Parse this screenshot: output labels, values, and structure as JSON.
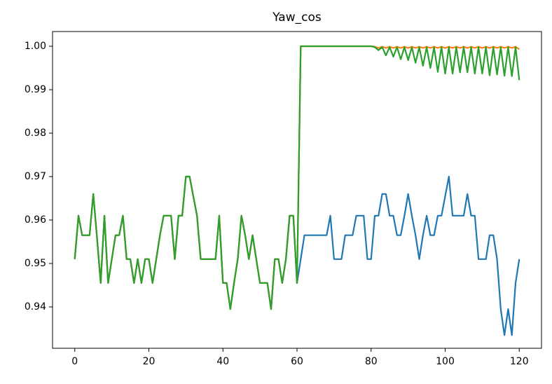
{
  "chart_data": {
    "type": "line",
    "title": "Yaw_cos",
    "x": [
      0,
      1,
      2,
      3,
      4,
      5,
      6,
      7,
      8,
      9,
      10,
      11,
      12,
      13,
      14,
      15,
      16,
      17,
      18,
      19,
      20,
      21,
      22,
      23,
      24,
      25,
      26,
      27,
      28,
      29,
      30,
      31,
      32,
      33,
      34,
      35,
      36,
      37,
      38,
      39,
      40,
      41,
      42,
      43,
      44,
      45,
      46,
      47,
      48,
      49,
      50,
      51,
      52,
      53,
      54,
      55,
      56,
      57,
      58,
      59,
      60,
      61,
      62,
      63,
      64,
      65,
      66,
      67,
      68,
      69,
      70,
      71,
      72,
      73,
      74,
      75,
      76,
      77,
      78,
      79,
      80,
      81,
      82,
      83,
      84,
      85,
      86,
      87,
      88,
      89,
      90,
      91,
      92,
      93,
      94,
      95,
      96,
      97,
      98,
      99,
      100,
      101,
      102,
      103,
      104,
      105,
      106,
      107,
      108,
      109,
      110,
      111,
      112,
      113,
      114,
      115,
      116,
      117,
      118,
      119,
      120
    ],
    "series": [
      {
        "color": "#1f77b4",
        "values": [
          0.951,
          0.961,
          0.9565,
          0.9565,
          0.9565,
          0.966,
          0.956,
          0.9455,
          0.961,
          0.9455,
          0.951,
          0.9565,
          0.9565,
          0.961,
          0.951,
          0.951,
          0.9455,
          0.951,
          0.9455,
          0.951,
          0.951,
          0.9455,
          0.951,
          0.9565,
          0.961,
          0.961,
          0.961,
          0.951,
          0.961,
          0.961,
          0.97,
          0.97,
          0.9655,
          0.961,
          0.951,
          0.951,
          0.951,
          0.951,
          0.951,
          0.961,
          0.9455,
          0.9455,
          0.9395,
          0.9455,
          0.951,
          0.961,
          0.9565,
          0.951,
          0.9565,
          0.951,
          0.9455,
          0.9455,
          0.9455,
          0.9395,
          0.951,
          0.951,
          0.9455,
          0.951,
          0.961,
          0.961,
          0.9455,
          0.951,
          0.9565,
          0.9565,
          0.9565,
          0.9565,
          0.9565,
          0.9565,
          0.9565,
          0.961,
          0.951,
          0.951,
          0.951,
          0.9565,
          0.9565,
          0.9565,
          0.961,
          0.961,
          0.961,
          0.951,
          0.951,
          0.961,
          0.961,
          0.966,
          0.966,
          0.961,
          0.961,
          0.9565,
          0.9565,
          0.961,
          0.966,
          0.961,
          0.9565,
          0.951,
          0.9565,
          0.961,
          0.9565,
          0.9565,
          0.961,
          0.961,
          0.9655,
          0.97,
          0.961,
          0.961,
          0.961,
          0.961,
          0.966,
          0.961,
          0.961,
          0.951,
          0.951,
          0.951,
          0.9565,
          0.9565,
          0.951,
          0.9395,
          0.9335,
          0.9395,
          0.9335,
          0.9455,
          0.951
        ]
      },
      {
        "color": "#ff7f0e",
        "values": [
          0.951,
          0.961,
          0.9565,
          0.9565,
          0.9565,
          0.966,
          0.956,
          0.9455,
          0.961,
          0.9455,
          0.951,
          0.9565,
          0.9565,
          0.961,
          0.951,
          0.951,
          0.9455,
          0.951,
          0.9455,
          0.951,
          0.951,
          0.9455,
          0.951,
          0.9565,
          0.961,
          0.961,
          0.961,
          0.951,
          0.961,
          0.961,
          0.97,
          0.97,
          0.9655,
          0.961,
          0.951,
          0.951,
          0.951,
          0.951,
          0.951,
          0.961,
          0.9455,
          0.9455,
          0.9395,
          0.9455,
          0.951,
          0.961,
          0.9565,
          0.951,
          0.9565,
          0.951,
          0.9455,
          0.9455,
          0.9455,
          0.9395,
          0.951,
          0.951,
          0.9455,
          0.951,
          0.961,
          0.961,
          0.9455,
          1,
          1,
          1,
          1,
          1,
          1,
          1,
          1,
          1,
          1,
          1,
          1,
          1,
          1,
          1,
          1,
          1,
          1,
          1,
          1,
          0.9999,
          0.9996,
          0.9999,
          0.9996,
          0.9999,
          0.9996,
          0.9999,
          0.9996,
          0.9999,
          0.9996,
          0.9999,
          0.9996,
          0.9999,
          0.9996,
          0.9999,
          0.9996,
          0.9999,
          0.9996,
          0.9999,
          0.9996,
          0.9999,
          0.9996,
          0.9999,
          0.9996,
          0.9999,
          0.9996,
          0.9999,
          0.9996,
          0.9999,
          0.9996,
          0.9999,
          0.9996,
          0.9999,
          0.9996,
          0.9999,
          0.9996,
          0.9999,
          0.9996,
          0.9999,
          0.9993
        ]
      },
      {
        "color": "#2ca02c",
        "values": [
          0.951,
          0.961,
          0.9565,
          0.9565,
          0.9565,
          0.966,
          0.956,
          0.9455,
          0.961,
          0.9455,
          0.951,
          0.9565,
          0.9565,
          0.961,
          0.951,
          0.951,
          0.9455,
          0.951,
          0.9455,
          0.951,
          0.951,
          0.9455,
          0.951,
          0.9565,
          0.961,
          0.961,
          0.961,
          0.951,
          0.961,
          0.961,
          0.97,
          0.97,
          0.9655,
          0.961,
          0.951,
          0.951,
          0.951,
          0.951,
          0.951,
          0.961,
          0.9455,
          0.9455,
          0.9395,
          0.9455,
          0.951,
          0.961,
          0.9565,
          0.951,
          0.9565,
          0.951,
          0.9455,
          0.9455,
          0.9455,
          0.9395,
          0.951,
          0.951,
          0.9455,
          0.951,
          0.961,
          0.961,
          0.9455,
          1,
          1,
          1,
          1,
          1,
          1,
          1,
          1,
          1,
          1,
          1,
          1,
          1,
          1,
          1,
          1,
          1,
          1,
          1,
          1,
          0.9998,
          0.9991,
          0.9998,
          0.9979,
          0.9998,
          0.9976,
          0.9998,
          0.997,
          0.9998,
          0.9968,
          0.9998,
          0.9962,
          0.9998,
          0.9955,
          0.9998,
          0.995,
          0.9998,
          0.9941,
          0.9998,
          0.9937,
          0.9998,
          0.9937,
          0.9998,
          0.994,
          0.9998,
          0.994,
          0.9998,
          0.9937,
          0.9998,
          0.9937,
          0.9998,
          0.9933,
          0.9998,
          0.9935,
          0.9998,
          0.9932,
          0.9998,
          0.9931,
          0.9998,
          0.9922
        ]
      }
    ],
    "xlim": [
      -6,
      126
    ],
    "xticks": [
      0,
      20,
      40,
      60,
      80,
      100,
      120
    ],
    "ylim": [
      0.93048,
      1.00339
    ],
    "yticks": [
      0.94,
      0.95,
      0.96,
      0.97,
      0.98,
      0.99,
      {
        "value": 1,
        "label": "1.00"
      }
    ],
    "grid": false
  }
}
